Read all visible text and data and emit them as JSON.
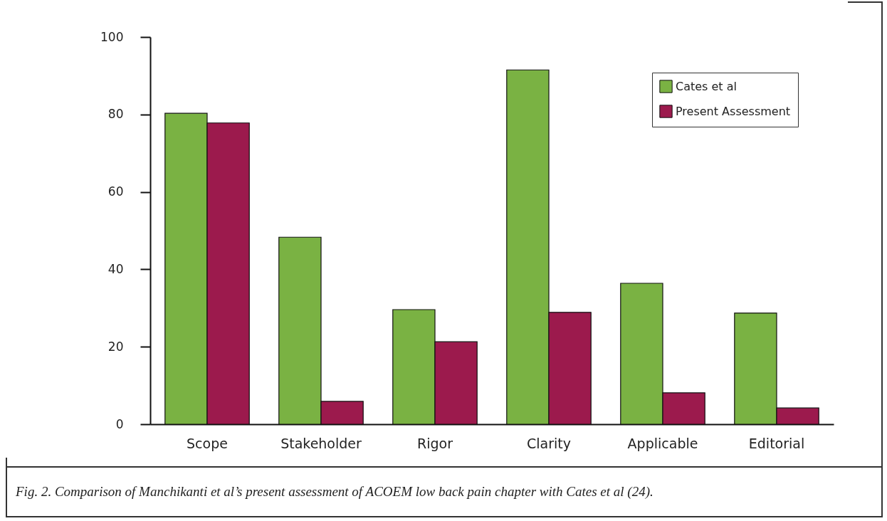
{
  "chart_data": {
    "type": "bar",
    "categories": [
      "Scope",
      "Stakeholder",
      "Rigor",
      "Clarity",
      "Applicable",
      "Editorial"
    ],
    "series": [
      {
        "name": "Cates et al",
        "color": "#7ab243",
        "values": [
          80.3,
          48.3,
          29.6,
          91.5,
          36.4,
          28.7
        ]
      },
      {
        "name": "Present Assessment",
        "color": "#9c1a4d",
        "values": [
          77.8,
          5.9,
          21.3,
          28.9,
          8.1,
          4.2
        ]
      }
    ],
    "ylim": [
      0,
      100
    ],
    "yticks": [
      0,
      20,
      40,
      60,
      80,
      100
    ],
    "grid": false,
    "legend": "top right",
    "annotations": [
      "Fig. 2. Comparison of Manchikanti et al’s present assessment of ACOEM low back pain chapter with Cates et al (24)."
    ]
  }
}
